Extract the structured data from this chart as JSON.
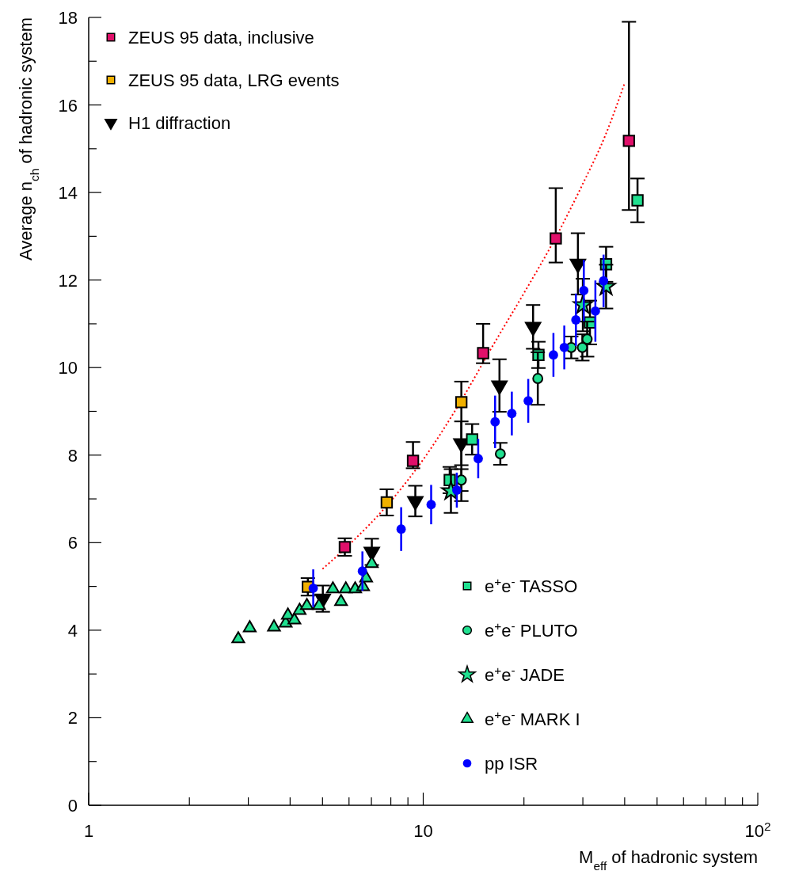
{
  "chart_data": {
    "type": "scatter",
    "xlabel": "M$_{eff}$ of hadronic system",
    "ylabel": "Average n$_{ch}$ of hadronic system",
    "log": "x",
    "xlim": [
      1,
      100
    ],
    "ylim": [
      0,
      18
    ],
    "xticks": [
      1,
      {
        "value": 2,
        "label": null
      },
      {
        "value": 3,
        "label": null
      },
      {
        "value": 4,
        "label": null
      },
      {
        "value": 5,
        "label": null
      },
      {
        "value": 6,
        "label": null
      },
      {
        "value": 7,
        "label": null
      },
      {
        "value": 8,
        "label": null
      },
      {
        "value": 9,
        "label": null
      },
      10,
      {
        "value": 20,
        "label": null
      },
      {
        "value": 30,
        "label": null
      },
      {
        "value": 40,
        "label": null
      },
      {
        "value": 50,
        "label": null
      },
      {
        "value": 60,
        "label": null
      },
      {
        "value": 70,
        "label": null
      },
      {
        "value": 80,
        "label": null
      },
      {
        "value": 90,
        "label": null
      },
      {
        "value": 100,
        "label": "10$^{2}$"
      }
    ],
    "yticks": [
      0,
      {
        "value": 1,
        "label": null
      },
      2,
      {
        "value": 3,
        "label": null
      },
      4,
      {
        "value": 5,
        "label": null
      },
      6,
      {
        "value": 7,
        "label": null
      },
      8,
      {
        "value": 9,
        "label": null
      },
      10,
      {
        "value": 11,
        "label": null
      },
      12,
      {
        "value": 13,
        "label": null
      },
      14,
      {
        "value": 15,
        "label": null
      },
      16,
      {
        "value": 17,
        "label": null
      },
      18
    ],
    "grid": false,
    "legend": "top left",
    "series": [
      {
        "type": "line",
        "color": "#ff0000",
        "marker": "none",
        "line_style": "dotted",
        "x": [
          5,
          6,
          8,
          10,
          13,
          16,
          20,
          25,
          30,
          35,
          40
        ],
        "values": [
          5.4,
          5.95,
          6.95,
          7.9,
          9.25,
          10.45,
          11.7,
          13.0,
          14.2,
          15.3,
          16.5
        ]
      },
      {
        "name": "ZEUS 95 data, inclusive",
        "color": "#e0106a",
        "marker": "square",
        "x": [
          5.83,
          9.32,
          15.1,
          24.9,
          41.2
        ],
        "values": [
          5.9,
          7.87,
          10.33,
          12.95,
          15.18
        ],
        "errors": [
          0.2,
          [
            7.7,
            8.3
          ],
          [
            10.1,
            11.0
          ],
          [
            12.4,
            14.1
          ],
          [
            13.6,
            17.9
          ]
        ]
      },
      {
        "name": "ZEUS 95 data, LRG events",
        "color": "#f0b000",
        "marker": "square",
        "x": [
          4.52,
          7.78,
          13.0
        ],
        "values": [
          4.99,
          6.92,
          9.21
        ],
        "errors": [
          0.2,
          0.3,
          [
            6.95,
            9.68
          ]
        ]
      },
      {
        "name": "H1 diffraction",
        "color": "#000000",
        "marker": "triangle-down",
        "x": [
          5.01,
          7.02,
          9.47,
          13.0,
          16.9,
          21.3,
          29.0
        ],
        "values": [
          4.72,
          5.79,
          6.95,
          8.27,
          9.59,
          10.93,
          12.37
        ],
        "errors": [
          0.3,
          0.3,
          0.35,
          0.5,
          0.6,
          0.5,
          0.7
        ]
      },
      {
        "name": "e$^{+}$e$^{-}$ TASSO",
        "color": "#20e090",
        "marker": "square",
        "x": [
          12.0,
          14.0,
          22.1,
          31.5,
          35.2,
          43.7
        ],
        "values": [
          7.43,
          8.36,
          10.29,
          11.03,
          12.36,
          13.82
        ],
        "errors": [
          0.3,
          0.35,
          0.3,
          0.5,
          0.4,
          0.5
        ]
      },
      {
        "name": "e$^{+}$e$^{-}$ PLUTO",
        "color": "#20e090",
        "marker": "circle",
        "x": [
          13.0,
          17.0,
          22.0,
          27.7,
          29.9,
          30.9
        ],
        "values": [
          7.43,
          8.03,
          9.75,
          10.46,
          10.46,
          10.65
        ],
        "errors": [
          0.25,
          0.25,
          0.6,
          0.25,
          0.3,
          0.4
        ]
      },
      {
        "name": "e$^{+}$e$^{-}$ JADE",
        "color": "#20e090",
        "marker": "star",
        "x": [
          12.1,
          30.0,
          35.2
        ],
        "values": [
          7.18,
          11.43,
          11.85
        ],
        "errors": [
          0.5,
          0.6,
          0.5
        ]
      },
      {
        "name": "e$^{+}$e$^{-}$ MARK I",
        "color": "#20e090",
        "marker": "triangle",
        "x": [
          2.8,
          3.03,
          3.58,
          3.88,
          3.94,
          4.12,
          4.27,
          4.49,
          4.88,
          5.37,
          5.68,
          5.87,
          6.26,
          6.61,
          6.75,
          7.02
        ],
        "values": [
          3.8,
          4.05,
          4.07,
          4.16,
          4.34,
          4.23,
          4.45,
          4.56,
          4.56,
          4.94,
          4.65,
          4.94,
          4.94,
          4.99,
          5.19,
          5.52
        ]
      },
      {
        "name": "pp ISR",
        "color": "#0000ff",
        "marker": "circle",
        "x": [
          4.69,
          6.58,
          8.59,
          10.56,
          12.6,
          14.6,
          16.4,
          18.4,
          20.6,
          24.5,
          26.4,
          28.6,
          30.2,
          32.7,
          34.6
        ],
        "values": [
          4.96,
          5.35,
          6.31,
          6.87,
          7.2,
          7.92,
          8.76,
          8.95,
          9.24,
          10.29,
          10.46,
          11.09,
          11.76,
          11.29,
          11.98
        ],
        "errors": [
          0.43,
          0.45,
          0.5,
          0.45,
          0.4,
          0.45,
          0.6,
          0.5,
          0.5,
          0.5,
          0.5,
          0.6,
          0.7,
          0.7,
          0.6
        ]
      }
    ]
  }
}
